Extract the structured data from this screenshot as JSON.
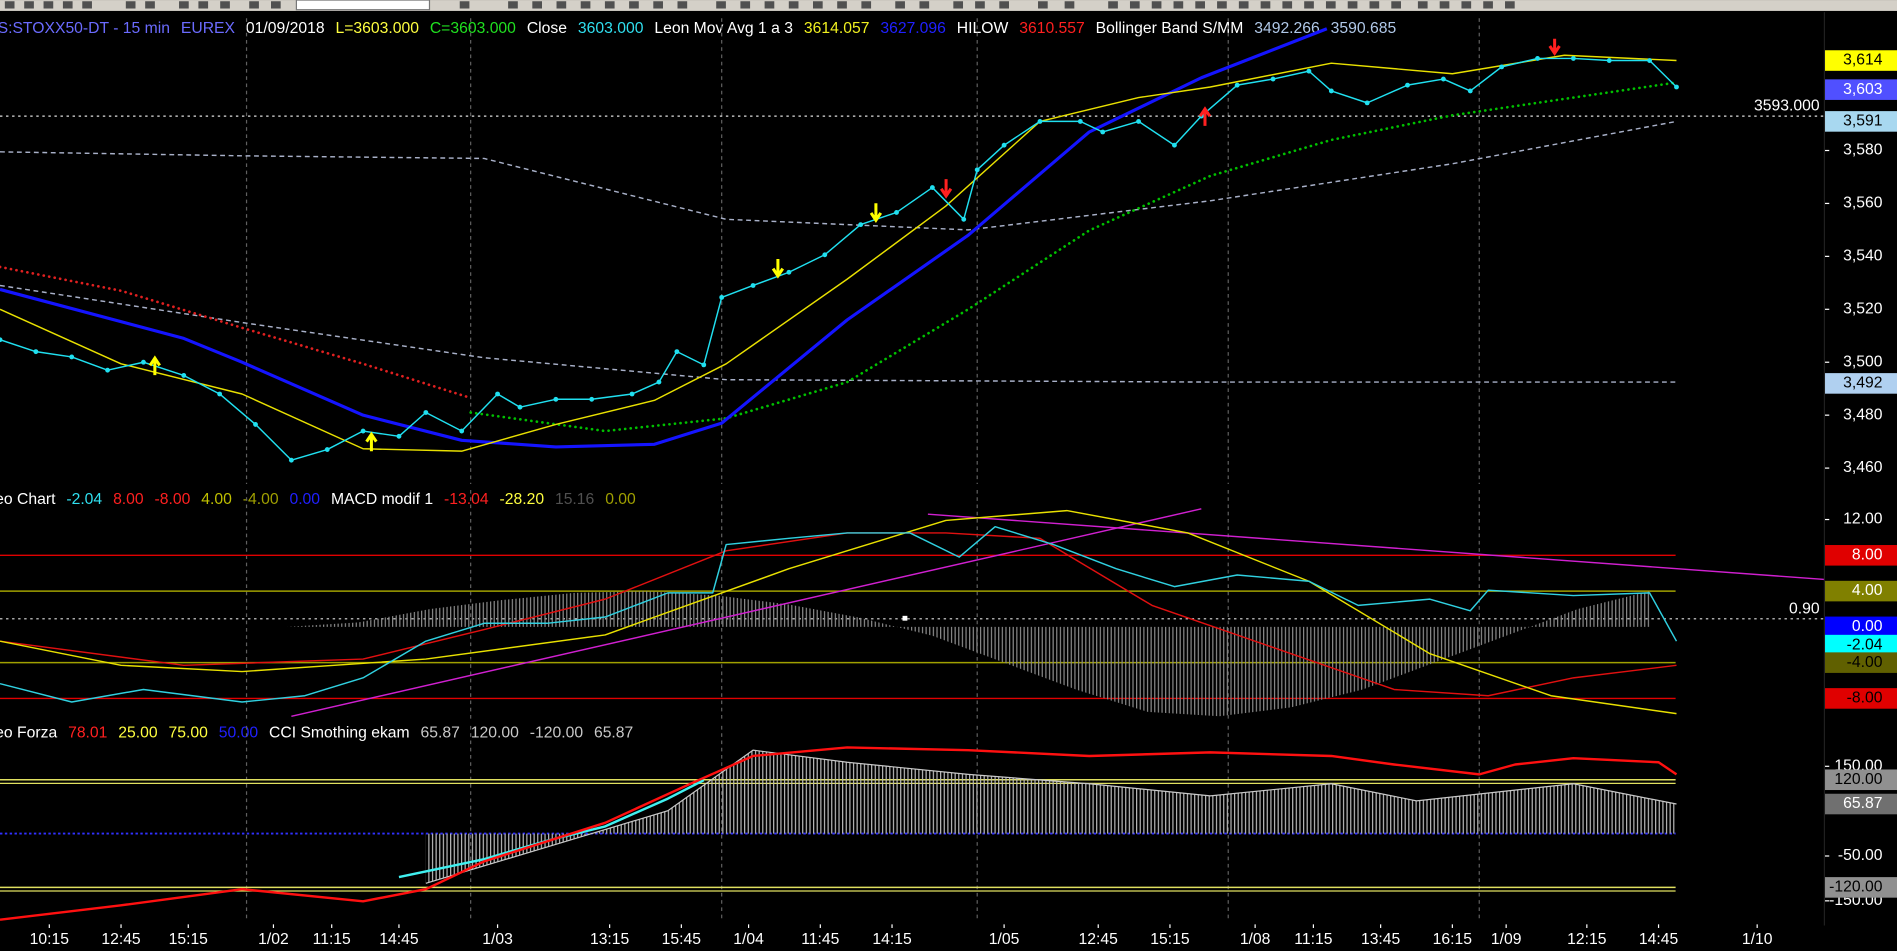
{
  "chart_data": [
    {
      "type": "line",
      "header": [
        {
          "text": "S:STOXX50-DT - 15 min",
          "color": "#6b6bff"
        },
        {
          "text": "EUREX",
          "color": "#6b6bff"
        },
        {
          "text": "01/09/2018",
          "color": "#ffffff"
        },
        {
          "text": "L=3603.000",
          "color": "#ffff40"
        },
        {
          "text": "C=3603.000",
          "color": "#20e020"
        },
        {
          "text": "Close",
          "color": "#ffffff"
        },
        {
          "text": "3603.000",
          "color": "#30e0f0"
        },
        {
          "text": "Leon Mov Avg 1 a 3",
          "color": "#ffffff"
        },
        {
          "text": "3614.057",
          "color": "#f0f020"
        },
        {
          "text": "3627.096",
          "color": "#2020ff"
        },
        {
          "text": "HILOW",
          "color": "#ffffff"
        },
        {
          "text": "3610.557",
          "color": "#ff2020"
        },
        {
          "text": "Bollinger Band S/MM",
          "color": "#ffffff"
        },
        {
          "text": "3492.266",
          "color": "#b0c8e8"
        },
        {
          "text": "3590.685",
          "color": "#b0c8e8"
        }
      ],
      "xlim": [
        0,
        407
      ],
      "ylim": [
        3454,
        3630
      ],
      "yticks": [
        {
          "value": 3460,
          "label": "3,460"
        },
        {
          "value": 3480,
          "label": "3,480"
        },
        {
          "value": 3500,
          "label": "3,500"
        },
        {
          "value": 3520,
          "label": "3,520"
        },
        {
          "value": 3540,
          "label": "3,540"
        },
        {
          "value": 3560,
          "label": "3,560"
        },
        {
          "value": 3580,
          "label": "3,580"
        }
      ],
      "boxes": [
        {
          "value": 3614,
          "label": "3,614",
          "bg": "#ffff00",
          "fg": "#000000"
        },
        {
          "value": 3603,
          "label": "3,603",
          "bg": "#5050ff",
          "fg": "#ffffff"
        },
        {
          "value": 3591,
          "label": "3,591",
          "bg": "#a8d8f0",
          "fg": "#000000"
        },
        {
          "value": 3492,
          "label": "3,492",
          "bg": "#b0d0f0",
          "fg": "#000000"
        }
      ],
      "reference": {
        "value": 3593,
        "label": "3593.000"
      },
      "series": [
        {
          "color": "#a8b0c8",
          "style": "dashed",
          "width": 1.2,
          "x": [
            0,
            54,
            108,
            162,
            216,
            270,
            324,
            374
          ],
          "values": [
            3579.5,
            3578,
            3577,
            3554,
            3550,
            3561,
            3575,
            3591
          ]
        },
        {
          "color": "#a8b0c8",
          "style": "dashed",
          "width": 1.2,
          "x": [
            0,
            54,
            108,
            162,
            270,
            374
          ],
          "values": [
            3529,
            3515,
            3501.7,
            3493.4,
            3492.5,
            3492.5
          ]
        },
        {
          "color": "#e02020",
          "style": "dotted",
          "width": 2.2,
          "x": [
            0,
            27,
            54,
            81,
            105
          ],
          "values": [
            3536,
            3527,
            3513,
            3499.4,
            3486.5
          ]
        },
        {
          "color": "#00c000",
          "style": "dotted",
          "width": 2.2,
          "x": [
            105,
            135,
            162,
            189,
            216,
            243,
            270,
            297,
            324,
            351,
            374
          ],
          "values": [
            3481,
            3474,
            3478.8,
            3492.5,
            3520,
            3549.8,
            3570.4,
            3584,
            3593.3,
            3600,
            3605.7
          ]
        },
        {
          "color": "#1414ff",
          "style": "solid",
          "width": 2.6,
          "x": [
            0,
            41,
            54,
            81,
            103,
            124,
            146,
            161,
            189,
            216,
            243,
            268,
            296
          ],
          "values": [
            3527.5,
            3509,
            3500,
            3480,
            3470.5,
            3468,
            3469,
            3477,
            3516,
            3548,
            3587,
            3607.5,
            3626
          ]
        },
        {
          "color": "#e8e000",
          "style": "solid",
          "width": 1.2,
          "x": [
            0,
            27,
            54,
            81,
            103,
            124,
            146,
            162,
            189,
            211,
            232,
            254,
            270,
            297,
            324,
            349,
            374
          ],
          "values": [
            3520,
            3499.4,
            3488,
            3467.3,
            3466.4,
            3476.5,
            3485.6,
            3499.4,
            3531.4,
            3559,
            3591,
            3600,
            3604,
            3613,
            3609,
            3616,
            3614
          ]
        },
        {
          "color": "#20e0f0",
          "style": "dots",
          "width": 1.2,
          "x": [
            0,
            8,
            16,
            24,
            32,
            41,
            49,
            57,
            65,
            73,
            81,
            89,
            95,
            103,
            111,
            116,
            124,
            132,
            141,
            147,
            151,
            157,
            161,
            168,
            176,
            184,
            192,
            200,
            208,
            215,
            218,
            224,
            232,
            241,
            246,
            254,
            262,
            268,
            276,
            284,
            292,
            297,
            305,
            314,
            322,
            328,
            335,
            343,
            351,
            359,
            368,
            374
          ],
          "values": [
            3508.5,
            3504,
            3502,
            3497,
            3500,
            3495,
            3488,
            3476.5,
            3463,
            3467,
            3474,
            3472,
            3481,
            3474,
            3488,
            3483,
            3486,
            3486,
            3488,
            3492.5,
            3504,
            3499,
            3524.5,
            3529,
            3534,
            3540.6,
            3552,
            3556.6,
            3566,
            3554,
            3572.7,
            3582,
            3591,
            3591,
            3587,
            3591,
            3582,
            3593,
            3604.7,
            3607,
            3610,
            3602.5,
            3598,
            3604.7,
            3607,
            3602.5,
            3611.6,
            3614.8,
            3614.8,
            3614,
            3614,
            3604
          ]
        }
      ]
    },
    {
      "type": "line",
      "header": [
        {
          "text": "eo Chart",
          "color": "#ffffff"
        },
        {
          "text": "-2.04",
          "color": "#30e0f0"
        },
        {
          "text": "8.00",
          "color": "#ff2020"
        },
        {
          "text": "-8.00",
          "color": "#ff2020"
        },
        {
          "text": "4.00",
          "color": "#c0c000"
        },
        {
          "text": "-4.00",
          "color": "#a0a000"
        },
        {
          "text": "0.00",
          "color": "#2020ff"
        },
        {
          "text": "MACD modif 1",
          "color": "#ffffff"
        },
        {
          "text": "-13.04",
          "color": "#ff2020"
        },
        {
          "text": "-28.20",
          "color": "#ffff40"
        },
        {
          "text": "15.16",
          "color": "#505050"
        },
        {
          "text": "0.00",
          "color": "#a0a000"
        }
      ],
      "xlim": [
        0,
        407
      ],
      "ylim": [
        -10.4,
        15.3
      ],
      "yticks": [
        {
          "value": 12,
          "label": "12.00"
        }
      ],
      "boxes": [
        {
          "value": 8,
          "label": "8.00",
          "bg": "#e00000",
          "fg": "#ffffff",
          "line": "#e00000"
        },
        {
          "value": 4,
          "label": "4.00",
          "bg": "#808000",
          "fg": "#ffffff",
          "line": "#a0a000"
        },
        {
          "value": 0,
          "label": "0.00",
          "bg": "#0000ff",
          "fg": "#ffffff"
        },
        {
          "value": -2.04,
          "label": "-2.04",
          "bg": "#00ffff",
          "fg": "#000000"
        },
        {
          "value": -4,
          "label": "-4.00",
          "bg": "#606000",
          "fg": "#000000",
          "line": "#a0a000"
        },
        {
          "value": -8,
          "label": "-8.00",
          "bg": "#e00000",
          "fg": "#000000",
          "line": "#e00000"
        }
      ],
      "reference": {
        "value": 0.9,
        "label": "0.90"
      },
      "series": [
        {
          "color": "#909090",
          "style": "hist",
          "width": 1,
          "x": [
            0,
            16,
            32,
            48,
            64,
            80,
            96,
            112,
            128,
            144,
            160,
            176,
            192,
            208,
            224,
            240,
            256,
            272,
            288,
            304,
            320,
            336,
            352,
            368
          ],
          "values": [
            0,
            0,
            0,
            0,
            0,
            0.5,
            2,
            3,
            3.8,
            4,
            3.5,
            2.5,
            1,
            -1,
            -4,
            -7,
            -9.5,
            -10,
            -9,
            -7,
            -4,
            -1,
            2,
            4
          ]
        },
        {
          "color": "#d020d0",
          "style": "solid",
          "width": 1.2,
          "x": [
            65,
            268
          ],
          "values": [
            -10,
            13.2
          ]
        },
        {
          "color": "#d020d0",
          "style": "solid",
          "width": 1.2,
          "x": [
            207,
            407
          ],
          "values": [
            12.6,
            5.3
          ]
        },
        {
          "color": "#e01010",
          "style": "solid",
          "width": 1.2,
          "x": [
            0,
            41,
            81,
            108,
            135,
            162,
            189,
            211,
            232,
            257,
            284,
            311,
            332,
            351,
            374
          ],
          "values": [
            -1.6,
            -4.3,
            -3.6,
            -0.3,
            3.1,
            8.5,
            10.5,
            10.5,
            9.9,
            2.4,
            -2.3,
            -7,
            -7.7,
            -5.7,
            -4.3
          ]
        },
        {
          "color": "#e8e000",
          "style": "solid",
          "width": 1.2,
          "x": [
            0,
            27,
            54,
            95,
            135,
            176,
            211,
            238,
            265,
            292,
            319,
            346,
            374
          ],
          "values": [
            -1.6,
            -4.3,
            -5,
            -3.6,
            -0.9,
            6.5,
            11.9,
            13,
            10.5,
            5.1,
            -3,
            -7.7,
            -9.7
          ]
        },
        {
          "color": "#30d0e0",
          "style": "solid",
          "width": 1.2,
          "x": [
            0,
            16,
            32,
            54,
            68,
            81,
            95,
            108,
            122,
            135,
            149,
            159,
            162,
            176,
            189,
            203,
            214,
            222,
            235,
            249,
            262,
            276,
            292,
            303,
            319,
            328,
            332,
            351,
            368,
            374
          ],
          "values": [
            -6.35,
            -8.4,
            -7,
            -8.4,
            -7.7,
            -5.7,
            -1.6,
            0.4,
            0.4,
            1.1,
            3.8,
            3.8,
            9.2,
            9.9,
            10.5,
            10.5,
            7.8,
            11.2,
            9.2,
            6.5,
            4.5,
            5.8,
            5.1,
            2.4,
            3.1,
            1.8,
            4.1,
            3.5,
            3.8,
            -1.6
          ]
        }
      ]
    },
    {
      "type": "line",
      "header": [
        {
          "text": "eo Forza",
          "color": "#ffffff"
        },
        {
          "text": "78.01",
          "color": "#ff2020"
        },
        {
          "text": "25.00",
          "color": "#ffff40"
        },
        {
          "text": "75.00",
          "color": "#ffff40"
        },
        {
          "text": "50.00",
          "color": "#2020ff"
        },
        {
          "text": "CCI Smothing ekam",
          "color": "#ffffff"
        },
        {
          "text": "65.87",
          "color": "#c8c8c8"
        },
        {
          "text": "120.00",
          "color": "#c8c8c8"
        },
        {
          "text": "-120.00",
          "color": "#c8c8c8"
        },
        {
          "text": "65.87",
          "color": "#c8c8c8"
        }
      ],
      "xlim": [
        0,
        407
      ],
      "ylim": [
        -197,
        240
      ],
      "yticks": [
        {
          "value": 150,
          "label": "150.00"
        },
        {
          "value": -50,
          "label": "-50.00"
        },
        {
          "value": -150,
          "label": "-150.00"
        }
      ],
      "zero_line": "#3030ff",
      "boxes": [
        {
          "value": 120,
          "label": "120.00",
          "bg": "#909090",
          "fg": "#000000",
          "line": "#e0e060"
        },
        {
          "value": 65.87,
          "label": "65.87",
          "bg": "#707070",
          "fg": "#ffffff"
        },
        {
          "value": -120,
          "label": "-120.00",
          "bg": "#909090",
          "fg": "#000000",
          "line": "#e0e060"
        }
      ],
      "xticks": [
        {
          "value": 11,
          "label": "10:15"
        },
        {
          "value": 27,
          "label": "12:45"
        },
        {
          "value": 42,
          "label": "15:15"
        },
        {
          "value": 61,
          "label": "1/02"
        },
        {
          "value": 74,
          "label": "11:15"
        },
        {
          "value": 89,
          "label": "14:45"
        },
        {
          "value": 111,
          "label": "1/03"
        },
        {
          "value": 136,
          "label": "13:15"
        },
        {
          "value": 152,
          "label": "15:45"
        },
        {
          "value": 167,
          "label": "1/04"
        },
        {
          "value": 183,
          "label": "11:45"
        },
        {
          "value": 199,
          "label": "14:15"
        },
        {
          "value": 224,
          "label": "1/05"
        },
        {
          "value": 245,
          "label": "12:45"
        },
        {
          "value": 261,
          "label": "15:15"
        },
        {
          "value": 280,
          "label": "1/08"
        },
        {
          "value": 293,
          "label": "11:15"
        },
        {
          "value": 308,
          "label": "13:45"
        },
        {
          "value": 324,
          "label": "16:15"
        },
        {
          "value": 336,
          "label": "1/09"
        },
        {
          "value": 354,
          "label": "12:15"
        },
        {
          "value": 370,
          "label": "14:45"
        },
        {
          "value": 392,
          "label": "1/10"
        }
      ],
      "day_separators": [
        55,
        105,
        161,
        218,
        274,
        330
      ],
      "series": [
        {
          "color": "#c8c8c8",
          "style": "hist",
          "width": 1,
          "x": [
            95,
            122,
            149,
            168,
            189,
            216,
            243,
            270,
            297,
            316,
            351,
            374
          ],
          "values": [
            -111,
            -30,
            51,
            186,
            159,
            132,
            111,
            84,
            111,
            73,
            111,
            65.87
          ]
        },
        {
          "color": "#40f0f0",
          "style": "solid",
          "width": 2,
          "x": [
            89,
            108,
            122,
            135,
            149,
            157
          ],
          "values": [
            -97,
            -57,
            -16,
            16,
            78,
            119
          ]
        },
        {
          "color": "#ff1010",
          "style": "solid",
          "width": 2,
          "x": [
            0,
            27,
            54,
            81,
            95,
            108,
            135,
            154,
            168,
            189,
            216,
            243,
            270,
            297,
            311,
            330,
            338,
            351,
            370,
            374
          ],
          "values": [
            -192,
            -160,
            -124,
            -151,
            -124,
            -62,
            24,
            111,
            173,
            192,
            186,
            173,
            181,
            173,
            154,
            132,
            154,
            168,
            159,
            132
          ]
        }
      ]
    }
  ]
}
